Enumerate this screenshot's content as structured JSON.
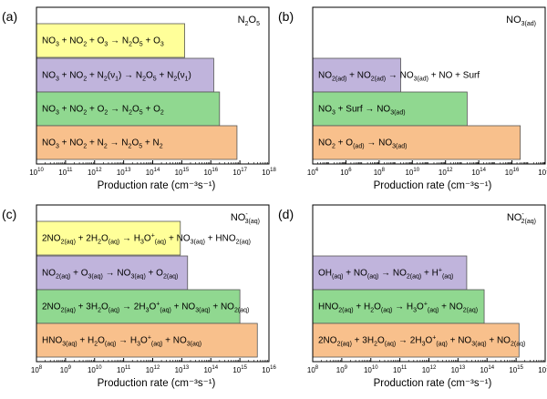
{
  "colors": {
    "yellow": "#FFFF99",
    "purple": "#C0B4DC",
    "green": "#90D890",
    "orange": "#F8C08C",
    "stroke": "#555555",
    "axis": "#000000"
  },
  "chart_data": [
    {
      "type": "bar",
      "orientation": "horizontal",
      "scale": "log",
      "panel": "(a)",
      "species_html": "N<tspan font-size='7' dy='3'>2</tspan><tspan dy='-3'>O</tspan><tspan font-size='7' dy='3'>5</tspan>",
      "xlim_exp": [
        10,
        18
      ],
      "tick_exps": [
        10,
        11,
        12,
        13,
        14,
        15,
        16,
        17,
        18
      ],
      "xlabel": "Production rate (cm⁻³s⁻¹)",
      "bars": [
        {
          "label_html": "NO<tspan font-size='7' dy='3'>3</tspan><tspan dy='-3'> + NO</tspan><tspan font-size='7' dy='3'>2</tspan><tspan dy='-3'> + O</tspan><tspan font-size='7' dy='3'>3</tspan><tspan dy='-3'> → N</tspan><tspan font-size='7' dy='3'>2</tspan><tspan dy='-3'>O</tspan><tspan font-size='7' dy='3'>5</tspan><tspan dy='-3'> + O</tspan><tspan font-size='7' dy='3'>3</tspan>",
          "value_exp": 15.1,
          "color": "yellow"
        },
        {
          "label_html": "NO<tspan font-size='7' dy='3'>3</tspan><tspan dy='-3'> + NO</tspan><tspan font-size='7' dy='3'>2</tspan><tspan dy='-3'> + N</tspan><tspan font-size='7' dy='3'>2</tspan><tspan dy='-3'>(ν</tspan><tspan font-size='7' dy='3'>1</tspan><tspan dy='-3'>) → N</tspan><tspan font-size='7' dy='3'>2</tspan><tspan dy='-3'>O</tspan><tspan font-size='7' dy='3'>5</tspan><tspan dy='-3'> + N</tspan><tspan font-size='7' dy='3'>2</tspan><tspan dy='-3'>(ν</tspan><tspan font-size='7' dy='3'>1</tspan><tspan dy='-3'>)</tspan>",
          "value_exp": 16.1,
          "color": "purple"
        },
        {
          "label_html": "NO<tspan font-size='7' dy='3'>3</tspan><tspan dy='-3'> + NO</tspan><tspan font-size='7' dy='3'>2</tspan><tspan dy='-3'> + O</tspan><tspan font-size='7' dy='3'>2</tspan><tspan dy='-3'> → N</tspan><tspan font-size='7' dy='3'>2</tspan><tspan dy='-3'>O</tspan><tspan font-size='7' dy='3'>5</tspan><tspan dy='-3'> + O</tspan><tspan font-size='7' dy='3'>2</tspan>",
          "value_exp": 16.3,
          "color": "green"
        },
        {
          "label_html": "NO<tspan font-size='7' dy='3'>3</tspan><tspan dy='-3'> + NO</tspan><tspan font-size='7' dy='3'>2</tspan><tspan dy='-3'> + N</tspan><tspan font-size='7' dy='3'>2</tspan><tspan dy='-3'> → N</tspan><tspan font-size='7' dy='3'>2</tspan><tspan dy='-3'>O</tspan><tspan font-size='7' dy='3'>5</tspan><tspan dy='-3'> + N</tspan><tspan font-size='7' dy='3'>2</tspan>",
          "value_exp": 16.9,
          "color": "orange"
        }
      ]
    },
    {
      "type": "bar",
      "orientation": "horizontal",
      "scale": "log",
      "panel": "(b)",
      "species_html": "NO<tspan font-size='7' dy='3'>3(ad)</tspan>",
      "xlim_exp": [
        4,
        18
      ],
      "tick_exps": [
        4,
        6,
        8,
        10,
        12,
        14,
        16,
        18
      ],
      "xlabel": "Production rate (cm⁻³s⁻¹)",
      "bars": [
        {
          "label_html": "",
          "value_exp": null,
          "color": "none"
        },
        {
          "label_html": "NO<tspan font-size='7' dy='3'>2(ad)</tspan><tspan dy='-3'> + NO</tspan><tspan font-size='7' dy='3'>2(ad)</tspan><tspan dy='-3'> → NO</tspan><tspan font-size='7' dy='3'>3(ad)</tspan><tspan dy='-3'> + NO + Surf</tspan>",
          "value_exp": 9.3,
          "color": "purple"
        },
        {
          "label_html": "NO<tspan font-size='7' dy='3'>3</tspan><tspan dy='-3'> + Surf → NO</tspan><tspan font-size='7' dy='3'>3(ad)</tspan>",
          "value_exp": 13.3,
          "color": "green"
        },
        {
          "label_html": "NO<tspan font-size='7' dy='3'>2</tspan><tspan dy='-3'> + O</tspan><tspan font-size='7' dy='3'>(ad)</tspan><tspan dy='-3'> → NO</tspan><tspan font-size='7' dy='3'>3(ad)</tspan>",
          "value_exp": 16.5,
          "color": "orange"
        }
      ]
    },
    {
      "type": "bar",
      "orientation": "horizontal",
      "scale": "log",
      "panel": "(c)",
      "species_html": "NO<tspan font-size='7' dy='-5'>-</tspan><tspan font-size='7' dx='-3' dy='8'>3(aq)</tspan>",
      "xlim_exp": [
        8,
        16
      ],
      "tick_exps": [
        8,
        9,
        10,
        11,
        12,
        13,
        14,
        15,
        16
      ],
      "xlabel": "Production rate (cm⁻³s⁻¹)",
      "bars": [
        {
          "label_html": "2NO<tspan font-size='7' dy='3'>2(aq)</tspan><tspan dy='-3'> + 2H</tspan><tspan font-size='7' dy='3'>2</tspan><tspan dy='-3'>O</tspan><tspan font-size='7' dy='3'>(aq)</tspan><tspan dy='-3'> → H</tspan><tspan font-size='7' dy='3'>3</tspan><tspan dy='-3'>O</tspan><tspan font-size='7' dy='-4'>+</tspan><tspan font-size='7' dy='7'>(aq)</tspan><tspan dy='-3'> + NO</tspan><tspan font-size='7' dy='3'>3(aq)</tspan><tspan dy='-3'> + HNO</tspan><tspan font-size='7' dy='3'>2(aq)</tspan>",
          "value_exp": 12.95,
          "color": "yellow"
        },
        {
          "label_html": "NO<tspan font-size='7' dy='3'>2(aq)</tspan><tspan dy='-3'> + O</tspan><tspan font-size='7' dy='3'>3(aq)</tspan><tspan dy='-3'> → NO</tspan><tspan font-size='7' dy='3'>3(aq)</tspan><tspan dy='-3'> + O</tspan><tspan font-size='7' dy='3'>2(aq)</tspan>",
          "value_exp": 13.2,
          "color": "purple"
        },
        {
          "label_html": "2NO<tspan font-size='7' dy='3'>2(aq)</tspan><tspan dy='-3'> + 3H</tspan><tspan font-size='7' dy='3'>2</tspan><tspan dy='-3'>O</tspan><tspan font-size='7' dy='3'>(aq)</tspan><tspan dy='-3'> → 2H</tspan><tspan font-size='7' dy='3'>3</tspan><tspan dy='-3'>O</tspan><tspan font-size='7' dy='-4'>+</tspan><tspan font-size='7' dy='7'>(aq)</tspan><tspan dy='-3'> + NO</tspan><tspan font-size='7' dy='3'>3(aq)</tspan><tspan dy='-3'> + NO</tspan><tspan font-size='7' dy='3'>2(aq)</tspan>",
          "value_exp": 15.0,
          "color": "green"
        },
        {
          "label_html": "HNO<tspan font-size='7' dy='3'>3(aq)</tspan><tspan dy='-3'> + H</tspan><tspan font-size='7' dy='3'>2</tspan><tspan dy='-3'>O</tspan><tspan font-size='7' dy='3'>(aq)</tspan><tspan dy='-3'> → H</tspan><tspan font-size='7' dy='3'>3</tspan><tspan dy='-3'>O</tspan><tspan font-size='7' dy='-4'>+</tspan><tspan font-size='7' dy='7'>(aq)</tspan><tspan dy='-3'> + NO</tspan><tspan font-size='7' dy='3'>3(aq)</tspan>",
          "value_exp": 15.6,
          "color": "orange"
        }
      ]
    },
    {
      "type": "bar",
      "orientation": "horizontal",
      "scale": "log",
      "panel": "(d)",
      "species_html": "NO<tspan font-size='7' dy='-5'>-</tspan><tspan font-size='7' dx='-3' dy='8'>2(aq)</tspan>",
      "xlim_exp": [
        8,
        16
      ],
      "tick_exps": [
        8,
        9,
        10,
        11,
        12,
        13,
        14,
        15,
        16
      ],
      "xlabel": "Production rate (cm⁻³s⁻¹)",
      "bars": [
        {
          "label_html": "",
          "value_exp": null,
          "color": "none"
        },
        {
          "label_html": "OH<tspan font-size='7' dy='3'>(aq)</tspan><tspan dy='-3'> + NO</tspan><tspan font-size='7' dy='3'>(aq)</tspan><tspan dy='-3'> → NO</tspan><tspan font-size='7' dy='3'>2(aq)</tspan><tspan dy='-3'> + H</tspan><tspan font-size='7' dy='-4'>+</tspan><tspan font-size='7' dy='7'>(aq)</tspan>",
          "value_exp": 13.3,
          "color": "purple"
        },
        {
          "label_html": "HNO<tspan font-size='7' dy='3'>2(aq)</tspan><tspan dy='-3'> + H</tspan><tspan font-size='7' dy='3'>2</tspan><tspan dy='-3'>O</tspan><tspan font-size='7' dy='3'>(aq)</tspan><tspan dy='-3'> → H</tspan><tspan font-size='7' dy='3'>3</tspan><tspan dy='-3'>O</tspan><tspan font-size='7' dy='-4'>+</tspan><tspan font-size='7' dy='7'>(aq)</tspan><tspan dy='-3'> + NO</tspan><tspan font-size='7' dy='3'>2(aq)</tspan>",
          "value_exp": 13.9,
          "color": "green"
        },
        {
          "label_html": "2NO<tspan font-size='7' dy='3'>2(aq)</tspan><tspan dy='-3'> + 3H</tspan><tspan font-size='7' dy='3'>2</tspan><tspan dy='-3'>O</tspan><tspan font-size='7' dy='3'>(aq)</tspan><tspan dy='-3'> → 2H</tspan><tspan font-size='7' dy='3'>3</tspan><tspan dy='-3'>O</tspan><tspan font-size='7' dy='-4'>+</tspan><tspan font-size='7' dy='7'>(aq)</tspan><tspan dy='-3'> + NO</tspan><tspan font-size='7' dy='3'>3(aq)</tspan><tspan dy='-3'> + NO</tspan><tspan font-size='7' dy='3'>2(aq)</tspan>",
          "value_exp": 15.1,
          "color": "orange"
        }
      ]
    }
  ]
}
